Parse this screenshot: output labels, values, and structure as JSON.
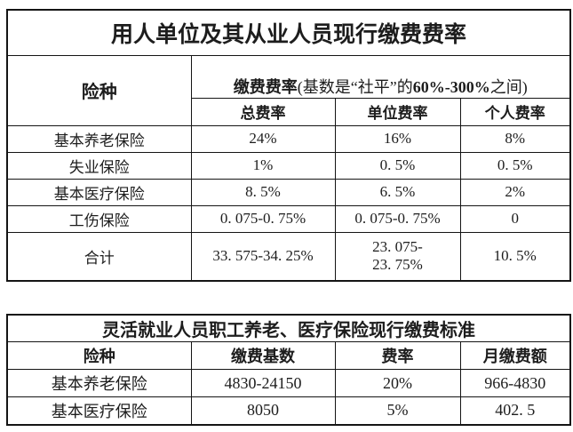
{
  "colors": {
    "border": "#141414",
    "text": "#1d1d1d",
    "background": "#ffffff"
  },
  "employer_table": {
    "title": "用人单位及其从业人员现行缴费费率",
    "insurance_type_header": "险种",
    "rate_header": {
      "label": "缴费费率",
      "base_note_pre": "(基数是“社平”的",
      "base_range": "60%-300%",
      "base_note_post": "之间)"
    },
    "subheaders": [
      "总费率",
      "单位费率",
      "个人费率"
    ],
    "rows": [
      [
        "基本养老保险",
        "24%",
        "16%",
        "8%"
      ],
      [
        "失业保险",
        "1%",
        "0. 5%",
        "0. 5%"
      ],
      [
        "基本医疗保险",
        "8. 5%",
        "6. 5%",
        "2%"
      ],
      [
        "工伤保险",
        "0. 075-0. 75%",
        "0. 075-0. 75%",
        "0"
      ],
      [
        "合计",
        "33. 575-34. 25%",
        "23. 075-\n23. 75%",
        "10. 5%"
      ]
    ]
  },
  "flexible_table": {
    "title": "灵活就业人员职工养老、医疗保险现行缴费标准",
    "headers": [
      "险种",
      "缴费基数",
      "费率",
      "月缴费额"
    ],
    "rows": [
      [
        "基本养老保险",
        "4830-24150",
        "20%",
        "966-4830"
      ],
      [
        "基本医疗保险",
        "8050",
        "5%",
        "402. 5"
      ]
    ]
  }
}
